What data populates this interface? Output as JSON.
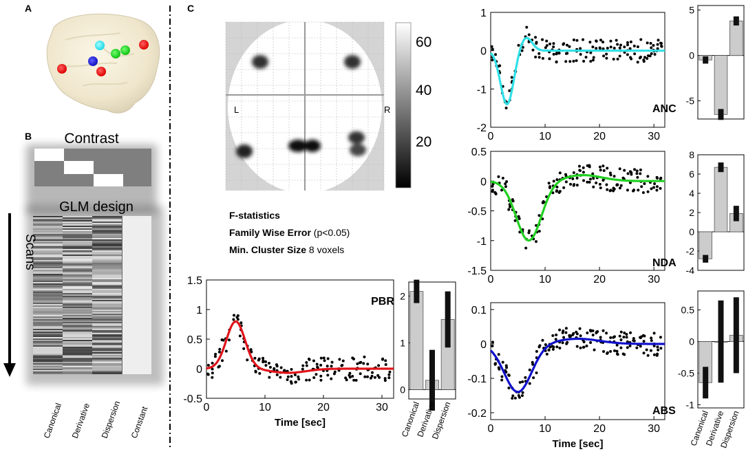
{
  "panel_labels": {
    "a": "A",
    "b": "B",
    "c": "C"
  },
  "panel_b": {
    "contrast_title": "Contrast",
    "glm_title": "GLM design",
    "scans_label": "Scans",
    "regressors": [
      "Canonical",
      "Derivative",
      "Dispersion",
      "Constant"
    ]
  },
  "stats": {
    "line1": "F-statistics",
    "line2_bold": "Family Wise Error",
    "line2_rest": " (p<0.05)",
    "line3_bold": "Min. Cluster Size",
    "line3_rest": " 8 voxels",
    "left_marker": "L",
    "right_marker": "R"
  },
  "colorbar": {
    "ticks": [
      "60",
      "40",
      "20"
    ],
    "range": [
      0,
      65
    ]
  },
  "bar_categories": [
    "Canonical",
    "Derivative",
    "Dispersion"
  ],
  "colors": {
    "PBR": "#e0141a",
    "ANC": "#30e0e8",
    "NDA": "#20d020",
    "ABS": "#1010cc",
    "bar": "#cccccc"
  },
  "chart_data": [
    {
      "type": "line",
      "name": "PBR",
      "label": "PBR",
      "xlabel": "Time [sec]",
      "ylabel": "",
      "xlim": [
        0,
        32
      ],
      "ylim": [
        -0.5,
        1.5
      ],
      "xticks": [
        "0",
        "10",
        "20",
        "30"
      ],
      "yticks": [
        "1.5",
        "1",
        "0.5",
        "0",
        "-0.5"
      ],
      "fit": {
        "amp": 0.8,
        "t_peak": 5,
        "width": 1.6,
        "under_amp": -0.07,
        "under_t": 14
      },
      "bars": {
        "categories": [
          "Canonical",
          "Derivative",
          "Dispersion"
        ],
        "values": [
          2.1,
          0.2,
          1.5
        ],
        "err": [
          0.25,
          0.65,
          0.6
        ],
        "ylim": [
          -0.2,
          2.3
        ],
        "yticks": [
          "2",
          "1",
          "0"
        ]
      }
    },
    {
      "type": "line",
      "name": "ANC",
      "label": "ANC",
      "xlabel": "",
      "ylabel": "",
      "xlim": [
        0,
        32
      ],
      "ylim": [
        -2,
        1
      ],
      "xticks": [
        "0",
        "10",
        "20",
        "30"
      ],
      "yticks": [
        "1",
        "0",
        "-1",
        "-2"
      ],
      "fit": {
        "min_amp": -1.4,
        "min_t": 3,
        "min_width": 1.2,
        "max_amp": 0.35,
        "max_t": 6.5,
        "max_width": 1.1
      },
      "bars": {
        "categories": [
          "Canonical",
          "Derivative",
          "Dispersion"
        ],
        "values": [
          -0.5,
          -6.5,
          3.8
        ],
        "err": [
          0.4,
          0.6,
          0.5
        ],
        "ylim": [
          -7,
          5.5
        ],
        "yticks": [
          "5",
          "0",
          "-5"
        ]
      }
    },
    {
      "type": "line",
      "name": "NDA",
      "label": "NDA",
      "xlabel": "",
      "ylabel": "",
      "xlim": [
        0,
        32
      ],
      "ylim": [
        -1.5,
        0.5
      ],
      "xticks": [
        "0",
        "10",
        "20",
        "30"
      ],
      "yticks": [
        "0.5",
        "0",
        "-0.5",
        "-1",
        "-1.5"
      ],
      "fit": {
        "min_amp": -1.0,
        "min_t": 7,
        "min_width": 2.3,
        "max_amp": 0.1,
        "max_t": 17,
        "max_width": 3.5
      },
      "bars": {
        "categories": [
          "Canonical",
          "Derivative",
          "Dispersion"
        ],
        "values": [
          -2.8,
          6.7,
          1.9
        ],
        "err": [
          0.4,
          0.5,
          0.8
        ],
        "ylim": [
          -4,
          8
        ],
        "yticks": [
          "8",
          "6",
          "4",
          "2",
          "0",
          "-2",
          "-4"
        ]
      }
    },
    {
      "type": "line",
      "name": "ABS",
      "label": "ABS",
      "xlabel": "Time [sec]",
      "ylabel": "",
      "xlim": [
        0,
        32
      ],
      "ylim": [
        -0.22,
        0.12
      ],
      "xticks": [
        "0",
        "10",
        "20",
        "30"
      ],
      "yticks": [
        "0.1",
        "0",
        "-0.1",
        "-0.2"
      ],
      "fit": {
        "min_amp": -0.14,
        "min_t": 5,
        "min_width": 2.5,
        "max_amp": 0.015,
        "max_t": 16,
        "max_width": 4
      },
      "bars": {
        "categories": [
          "Canonical",
          "Derivative",
          "Dispersion"
        ],
        "values": [
          -0.65,
          0.0,
          0.1
        ],
        "err": [
          0.25,
          0.65,
          0.6
        ],
        "ylim": [
          -1.05,
          0.8
        ],
        "yticks": [
          "0.5",
          "0",
          "-0.5",
          "-1"
        ]
      }
    }
  ]
}
